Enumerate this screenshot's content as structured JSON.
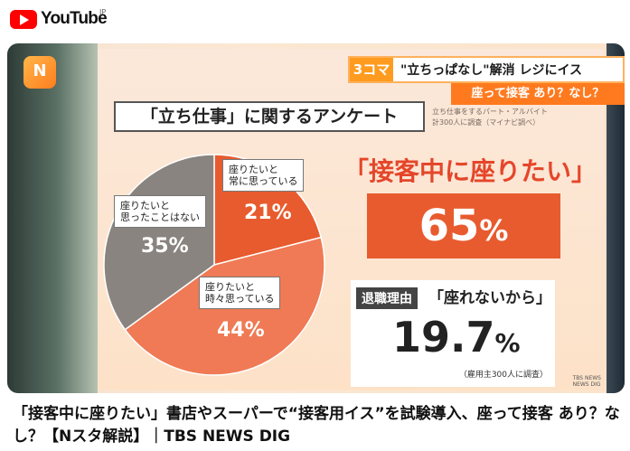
{
  "header": {
    "logo_text": "YouTube",
    "region": "JP"
  },
  "thumbnail": {
    "channel_logo": "N",
    "topic_bar": {
      "badge": "3コマ",
      "text": "\"立ちっぱなし\"解消 レジにイス"
    },
    "subtitle_bar": "座って接客 あり？なし？",
    "survey_title": "「立ち仕事」に関するアンケート",
    "survey_note": [
      "立ち仕事をするパート・アルバイト",
      "計300人に調査（マイナビ調べ）"
    ],
    "pie_chart": {
      "slices": [
        {
          "label_line1": "座りたいと",
          "label_line2": "常に思っている",
          "value_label": "21%",
          "value": 21,
          "color": "#e85b2e"
        },
        {
          "label_line1": "座りたいと",
          "label_line2": "時々思っている",
          "value_label": "44%",
          "value": 44,
          "color": "#ef7a55"
        },
        {
          "label_line1": "座りたいと",
          "label_line2": "思ったことはない",
          "value_label": "35%",
          "value": 35,
          "color": "#8a8480"
        }
      ]
    },
    "headline": "「接客中に座りたい」",
    "headline_value": "65",
    "headline_unit": "%",
    "reason": {
      "tag": "退職理由",
      "text": "「座れないから」",
      "value": "19.7",
      "unit": "%",
      "note": "（雇用主300人に調査）"
    },
    "watermark": [
      "TBS NEWS",
      "NEWS DIG"
    ]
  },
  "video": {
    "title": "「接客中に座りたい」書店やスーパーで“接客用イス”を試験導入、座って接客 あり？なし？【Nスタ解説】｜TBS NEWS DIG"
  }
}
